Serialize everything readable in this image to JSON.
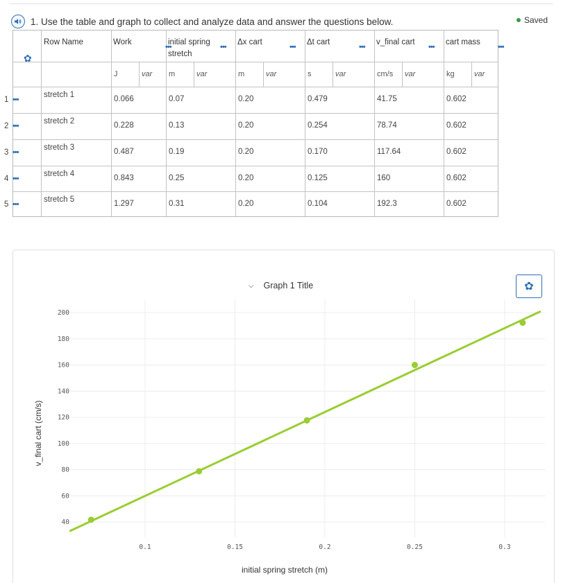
{
  "question": {
    "text": "1. Use the table and graph to collect and analyze data and answer the questions below."
  },
  "status": {
    "saved_label": "Saved"
  },
  "table": {
    "row_name_header": "Row Name",
    "columns": [
      {
        "name": "Work",
        "unit": "J",
        "var": "var"
      },
      {
        "name": "initial spring stretch",
        "unit": "m",
        "var": "var"
      },
      {
        "name": "Δx cart",
        "unit": "m",
        "var": "var"
      },
      {
        "name": "Δt cart",
        "unit": "s",
        "var": "var"
      },
      {
        "name": "v_final cart",
        "unit": "cm/s",
        "var": "var"
      },
      {
        "name": "cart mass",
        "unit": "kg",
        "var": "var"
      }
    ],
    "rows": [
      {
        "num": "1",
        "name": "stretch 1",
        "values": [
          "0.066",
          "0.07",
          "0.20",
          "0.479",
          "41.75",
          "0.602"
        ]
      },
      {
        "num": "2",
        "name": "stretch 2",
        "values": [
          "0.228",
          "0.13",
          "0.20",
          "0.254",
          "78.74",
          "0.602"
        ]
      },
      {
        "num": "3",
        "name": "stretch 3",
        "values": [
          "0.487",
          "0.19",
          "0.20",
          "0.170",
          "117.64",
          "0.602"
        ]
      },
      {
        "num": "4",
        "name": "stretch 4",
        "values": [
          "0.843",
          "0.25",
          "0.20",
          "0.125",
          "160",
          "0.602"
        ]
      },
      {
        "num": "5",
        "name": "stretch 5",
        "values": [
          "1.297",
          "0.31",
          "0.20",
          "0.104",
          "192.3",
          "0.602"
        ]
      }
    ],
    "menu_glyph": "•••"
  },
  "graph": {
    "title": "Graph 1 Title",
    "accent_color": "#9acd32",
    "chart_data": {
      "type": "scatter",
      "title": "Graph 1 Title",
      "xlabel": "initial spring stretch (m)",
      "ylabel": "v_final cart (cm/s)",
      "x": [
        0.07,
        0.13,
        0.19,
        0.25,
        0.31
      ],
      "y": [
        41.75,
        78.74,
        117.64,
        160,
        192.3
      ],
      "x_ticks": [
        0.1,
        0.15,
        0.2,
        0.25,
        0.3
      ],
      "x_tick_labels": [
        "0.1",
        "0.15",
        "0.2",
        "0.25",
        "0.3"
      ],
      "y_ticks": [
        40,
        60,
        80,
        100,
        120,
        140,
        160,
        180,
        200
      ],
      "fit_line": {
        "from": [
          0.058,
          33
        ],
        "to": [
          0.32,
          201
        ]
      },
      "xlim": [
        0.045,
        0.33
      ],
      "ylim": [
        30,
        210
      ],
      "grid": true,
      "color": "#9acd32"
    }
  }
}
